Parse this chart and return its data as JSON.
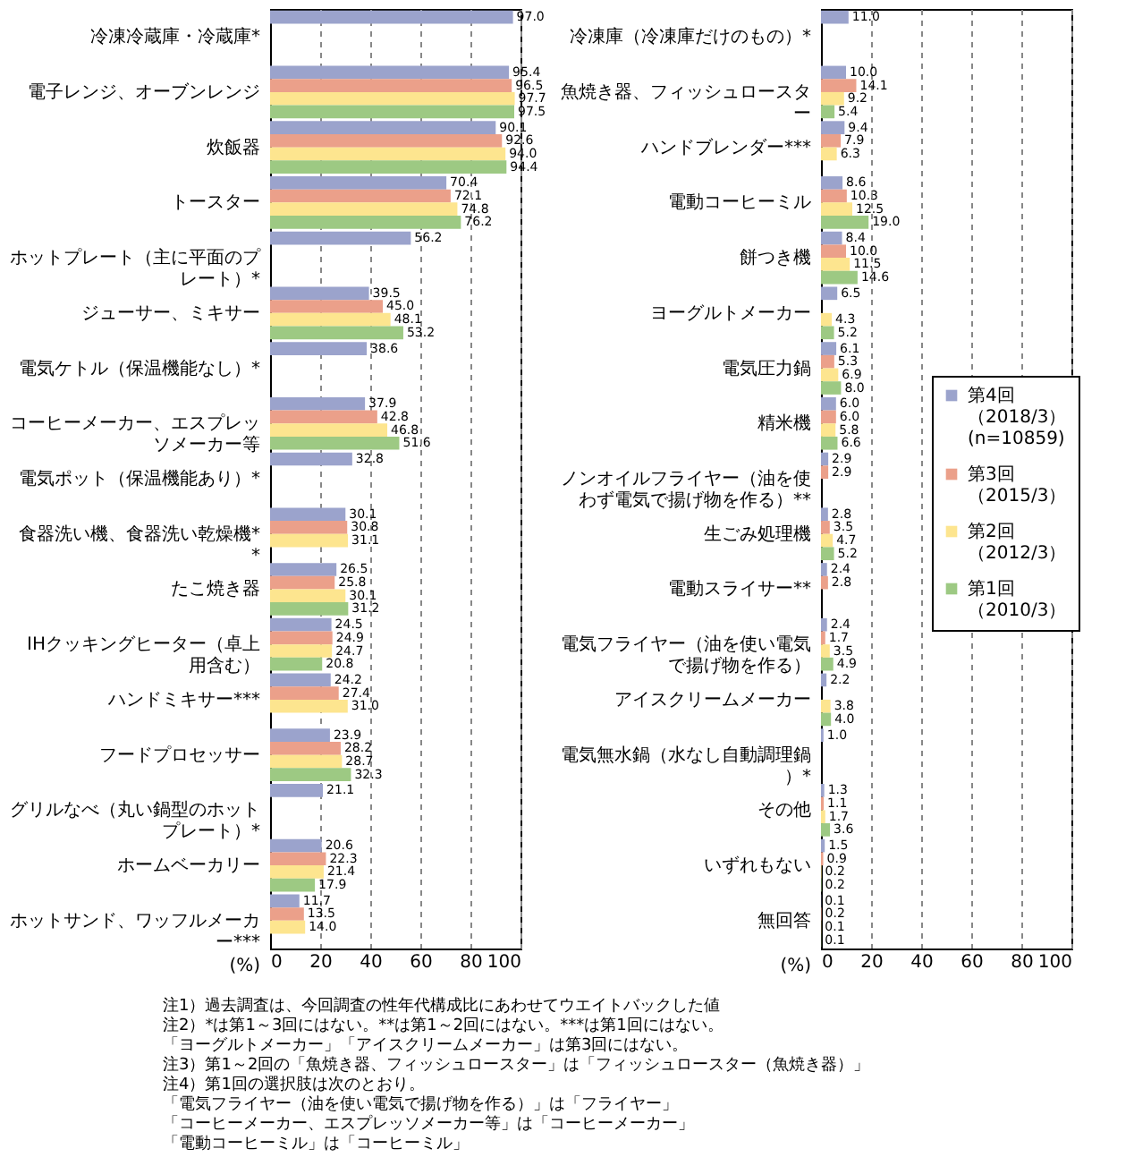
{
  "chart_data": [
    {
      "type": "bar",
      "orientation": "horizontal",
      "xlabel": "(%)",
      "xlim": [
        0,
        100
      ],
      "xticks": [
        0,
        20,
        40,
        60,
        80,
        100
      ],
      "grid": "x",
      "categories": [
        "冷凍冷蔵庫・冷蔵庫*",
        "電子レンジ、オーブンレンジ",
        "炊飯器",
        "トースター",
        "ホットプレート（主に平面のプレート）*",
        "ジューサー、ミキサー",
        "電気ケトル（保温機能なし）*",
        "コーヒーメーカー、エスプレッソメーカー等",
        "電気ポット（保温機能あり）*",
        "食器洗い機、食器洗い乾燥機**",
        "たこ焼き器",
        "IHクッキングヒーター（卓上用含む）",
        "ハンドミキサー***",
        "フードプロセッサー",
        "グリルなべ（丸い鍋型のホットプレート）*",
        "ホームベーカリー",
        "ホットサンド、ワッフルメーカー***"
      ],
      "series": [
        {
          "color": "#9ba3cc",
          "values": [
            97.0,
            95.4,
            90.1,
            70.4,
            56.2,
            39.5,
            38.6,
            37.9,
            32.8,
            30.1,
            26.5,
            24.5,
            24.2,
            23.9,
            21.1,
            20.6,
            11.7
          ],
          "value_labels": [
            "97.0",
            "95.4",
            "90.1",
            "70.4",
            "56.2",
            "39.5",
            "38.6",
            "37.9",
            "32.8",
            "30.1",
            "26.5",
            "24.5",
            "24.2",
            "23.9",
            "21.1",
            "20.6",
            "11.7"
          ]
        },
        {
          "color": "#eba08a",
          "values": [
            null,
            96.5,
            92.6,
            72.1,
            null,
            45.0,
            null,
            42.8,
            null,
            30.8,
            25.8,
            24.9,
            27.4,
            28.2,
            null,
            22.3,
            13.5
          ],
          "value_labels": [
            null,
            "96.5",
            "92.6",
            "72.1",
            null,
            "45.0",
            null,
            "42.8",
            null,
            "30.8",
            "25.8",
            "24.9",
            "27.4",
            "28.2",
            null,
            "22.3",
            "13.5"
          ]
        },
        {
          "color": "#fde58f",
          "values": [
            null,
            97.7,
            94.0,
            74.8,
            null,
            48.1,
            null,
            46.8,
            null,
            31.1,
            30.1,
            24.7,
            31.0,
            28.7,
            null,
            21.4,
            14.0
          ],
          "value_labels": [
            null,
            "97.7",
            "94.0",
            "74.8",
            null,
            "48.1",
            null,
            "46.8",
            null,
            "31.1",
            "30.1",
            "24.7",
            "31.0",
            "28.7",
            null,
            "21.4",
            "14.0"
          ]
        },
        {
          "color": "#9dc983",
          "values": [
            null,
            97.5,
            94.4,
            76.2,
            null,
            53.2,
            null,
            51.6,
            null,
            null,
            31.2,
            20.8,
            null,
            32.3,
            null,
            17.9,
            null
          ],
          "value_labels": [
            null,
            "97.5",
            "94.4",
            "76.2",
            null,
            "53.2",
            null,
            "51.6",
            null,
            null,
            "31.2",
            "20.8",
            null,
            "32.3",
            null,
            "17.9",
            null
          ]
        }
      ]
    },
    {
      "type": "bar",
      "orientation": "horizontal",
      "xlabel": "(%)",
      "xlim": [
        0,
        100
      ],
      "xticks": [
        0,
        20,
        40,
        60,
        80,
        100
      ],
      "grid": "x",
      "legend": "right",
      "categories": [
        "冷凍庫（冷凍庫だけのもの）*",
        "魚焼き器、フィッシュロースター",
        "ハンドブレンダー***",
        "電動コーヒーミル",
        "餅つき機",
        "ヨーグルトメーカー",
        "電気圧力鍋",
        "精米機",
        "ノンオイルフライヤー（油を使わず電気で揚げ物を作る）**",
        "生ごみ処理機",
        "電動スライサー**",
        "電気フライヤー（油を使い電気で揚げ物を作る）",
        "アイスクリームメーカー",
        "電気無水鍋（水なし自動調理鍋）*",
        "その他",
        "いずれもない",
        "無回答"
      ],
      "series": [
        {
          "name": "第4回（2018/3）(n=10859)",
          "color": "#9ba3cc",
          "values": [
            11.0,
            10.0,
            9.4,
            8.6,
            8.4,
            6.5,
            6.1,
            6.0,
            2.9,
            2.8,
            2.4,
            2.4,
            2.2,
            1.0,
            1.3,
            1.5,
            0.1
          ],
          "value_labels": [
            "11.0",
            "10.0",
            "9.4",
            "8.6",
            "8.4",
            "6.5",
            "6.1",
            "6.0",
            "2.9",
            "2.8",
            "2.4",
            "2.4",
            "2.2",
            "1.0",
            "1.3",
            "1.5",
            "0.1"
          ]
        },
        {
          "name": "第3回（2015/3）",
          "color": "#eba08a",
          "values": [
            null,
            14.1,
            7.9,
            10.3,
            10.0,
            null,
            5.3,
            6.0,
            2.9,
            3.5,
            2.8,
            1.7,
            null,
            null,
            1.1,
            0.9,
            0.2
          ],
          "value_labels": [
            null,
            "14.1",
            "7.9",
            "10.3",
            "10.0",
            null,
            "5.3",
            "6.0",
            "2.9",
            "3.5",
            "2.8",
            "1.7",
            null,
            null,
            "1.1",
            "0.9",
            "0.2"
          ]
        },
        {
          "name": "第2回（2012/3）",
          "color": "#fde58f",
          "values": [
            null,
            9.2,
            6.3,
            12.5,
            11.5,
            4.3,
            6.9,
            5.8,
            null,
            4.7,
            null,
            3.5,
            3.8,
            null,
            1.7,
            0.2,
            0.1
          ],
          "value_labels": [
            null,
            "9.2",
            "6.3",
            "12.5",
            "11.5",
            "4.3",
            "6.9",
            "5.8",
            null,
            "4.7",
            null,
            "3.5",
            "3.8",
            null,
            "1.7",
            "0.2",
            "0.1"
          ]
        },
        {
          "name": "第1回（2010/3）",
          "color": "#9dc983",
          "values": [
            null,
            5.4,
            null,
            19.0,
            14.6,
            5.2,
            8.0,
            6.6,
            null,
            5.2,
            null,
            4.9,
            4.0,
            null,
            3.6,
            0.2,
            0.1
          ],
          "value_labels": [
            null,
            "5.4",
            null,
            "19.0",
            "14.6",
            "5.2",
            "8.0",
            "6.6",
            null,
            "5.2",
            null,
            "4.9",
            "4.0",
            null,
            "3.6",
            "0.2",
            "0.1"
          ]
        }
      ],
      "annotations": [
        "注1）過去調査は、今回調査の性年代構成比にあわせてウエイトバックした値",
        "注2）*は第1～3回にはない。**は第1～2回にはない。***は第1回にはない。",
        "「ヨーグルトメーカー」「アイスクリームメーカー」は第3回にはない。",
        "注3）第1～2回の「魚焼き器、フィッシュロースター」は「フィッシュロースター（魚焼き器）」",
        "注4）第1回の選択肢は次のとおり。",
        "「電気フライヤー（油を使い電気で揚げ物を作る）」は「フライヤー」",
        "「コーヒーメーカー、エスプレッソメーカー等」は「コーヒーメーカー」",
        "「電動コーヒーミル」は「コーヒーミル」"
      ]
    }
  ]
}
